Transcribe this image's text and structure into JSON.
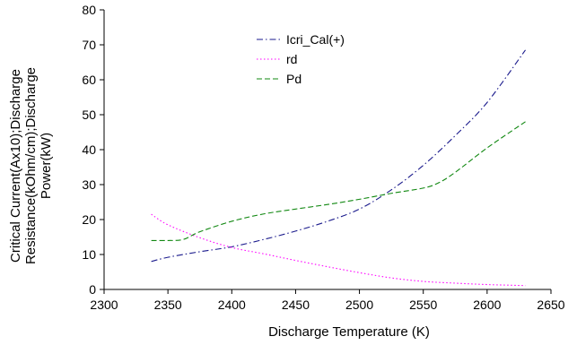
{
  "chart_data": {
    "type": "line",
    "title": "",
    "xlabel": "Discharge Temperature (K)",
    "ylabel_lines": [
      "Critical Current(Ax10);Discharge",
      "Resistance(kOhm/cm);Discharge",
      "Power(kW)"
    ],
    "xlim": [
      2300,
      2650
    ],
    "ylim": [
      0,
      80
    ],
    "x_ticks": [
      2300,
      2350,
      2400,
      2450,
      2500,
      2550,
      2600,
      2650
    ],
    "y_ticks": [
      0,
      10,
      20,
      30,
      40,
      50,
      60,
      70,
      80
    ],
    "grid": false,
    "legend_placement": "top-center",
    "series": [
      {
        "name": "Icri_Cal(+)",
        "color": "#1a1a8c",
        "dash": "dash-dot",
        "x": [
          2337,
          2350,
          2375,
          2400,
          2425,
          2450,
          2475,
          2500,
          2525,
          2550,
          2575,
          2600,
          2630
        ],
        "y": [
          8.0,
          9.2,
          10.8,
          12.2,
          14.3,
          16.7,
          19.5,
          23.0,
          28.5,
          35.5,
          44.0,
          53.5,
          68.5
        ]
      },
      {
        "name": "rd",
        "color": "#ff00ff",
        "dash": "dotted",
        "x": [
          2337,
          2350,
          2375,
          2400,
          2425,
          2450,
          2475,
          2500,
          2525,
          2550,
          2575,
          2600,
          2630
        ],
        "y": [
          21.5,
          18.5,
          14.8,
          12.0,
          10.2,
          8.3,
          6.5,
          4.8,
          3.3,
          2.3,
          1.8,
          1.4,
          1.1
        ]
      },
      {
        "name": "Pd",
        "color": "#118811",
        "dash": "dashed",
        "x": [
          2337,
          2350,
          2362,
          2375,
          2400,
          2425,
          2450,
          2475,
          2500,
          2525,
          2550,
          2562,
          2575,
          2600,
          2630
        ],
        "y": [
          14.0,
          14.0,
          14.3,
          16.5,
          19.5,
          21.6,
          23.0,
          24.3,
          25.8,
          27.5,
          29.0,
          30.5,
          33.5,
          40.5,
          48.0
        ]
      }
    ]
  }
}
